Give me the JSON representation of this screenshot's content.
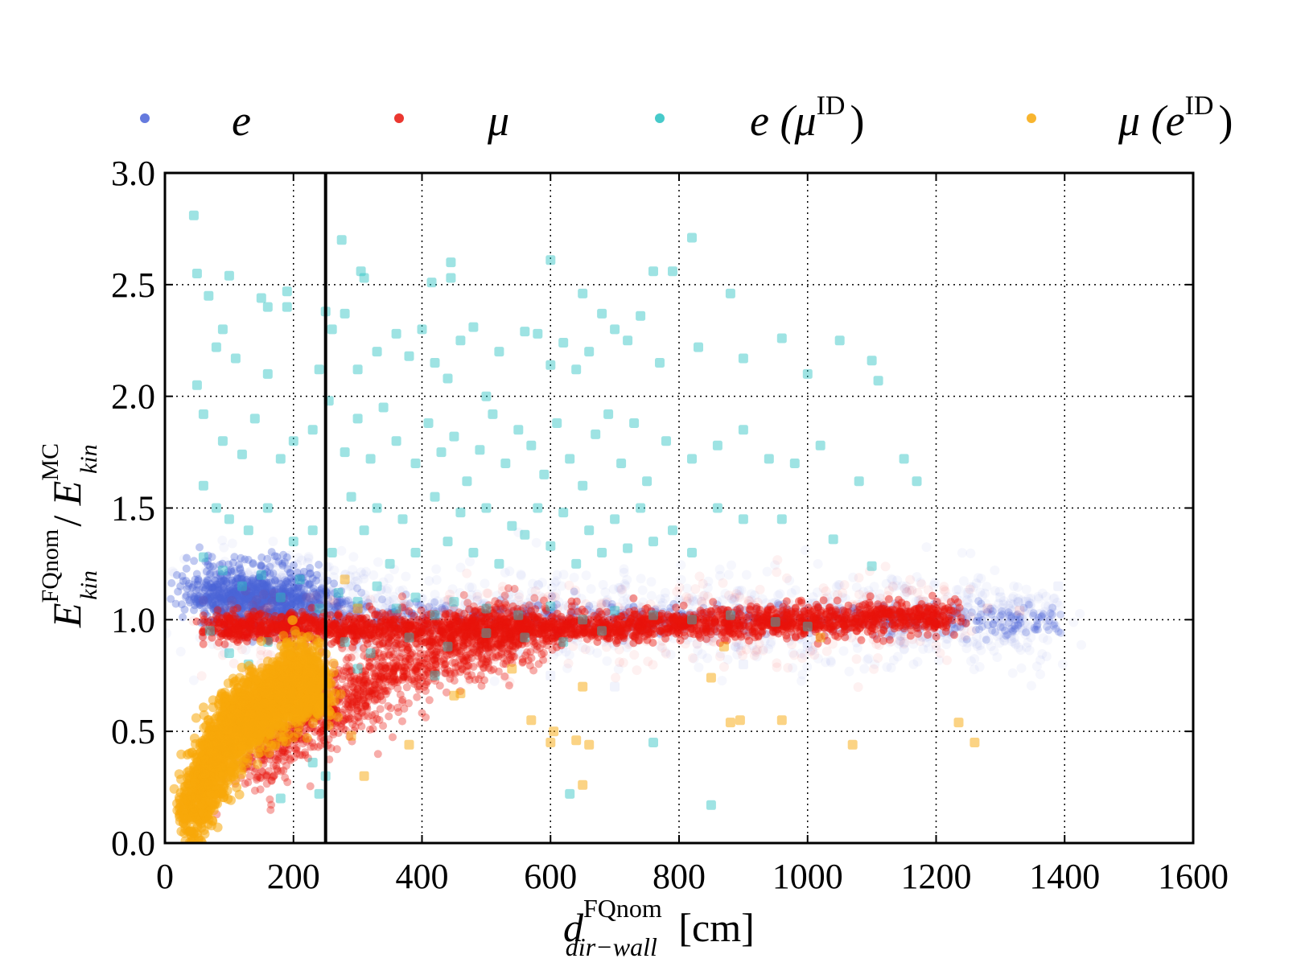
{
  "chart_data": {
    "type": "scatter",
    "xlabel": {
      "base": "d",
      "superscript": "FQnom",
      "subscript": "dir−wall",
      "unit": " [cm]"
    },
    "ylabel": {
      "num_base": "E",
      "num_sup": "FQnom",
      "num_sub": "kin",
      "sep": " / ",
      "den_base": "E",
      "den_sup": "MC",
      "den_sub": "kin"
    },
    "xlim": [
      0,
      1600
    ],
    "ylim": [
      0.0,
      3.0
    ],
    "xticks": [
      "0",
      "200",
      "400",
      "600",
      "800",
      "1000",
      "1200",
      "1400",
      "1600"
    ],
    "yticks": [
      "0.0",
      "0.5",
      "1.0",
      "1.5",
      "2.0",
      "2.5",
      "3.0"
    ],
    "xtick_values": [
      0,
      200,
      400,
      600,
      800,
      1000,
      1200,
      1400,
      1600
    ],
    "ytick_values": [
      0.0,
      0.5,
      1.0,
      1.5,
      2.0,
      2.5,
      3.0
    ],
    "grid": true,
    "legend_position": "top",
    "vertical_line_x": 250,
    "series": [
      {
        "name": "e",
        "sup": "",
        "color": "#4a63d8",
        "core": [
          [
            60,
            1.1
          ],
          [
            100,
            1.12
          ],
          [
            140,
            1.1
          ],
          [
            180,
            1.09
          ],
          [
            220,
            1.07
          ],
          [
            300,
            1.03
          ],
          [
            400,
            1.02
          ],
          [
            500,
            1.01
          ],
          [
            600,
            1.01
          ],
          [
            700,
            1.01
          ],
          [
            800,
            1.01
          ],
          [
            900,
            1.01
          ],
          [
            1000,
            1.0
          ],
          [
            1100,
            1.0
          ],
          [
            1200,
            1.0
          ],
          [
            1300,
            1.0
          ],
          [
            1380,
            1.0
          ]
        ],
        "points": [
          [
            1200,
            1.06
          ],
          [
            1250,
            1.12
          ],
          [
            1300,
            1.1
          ],
          [
            1340,
            1.08
          ],
          [
            1390,
            1.15
          ],
          [
            1150,
            0.9
          ],
          [
            1000,
            0.88
          ],
          [
            900,
            0.8
          ],
          [
            700,
            0.7
          ],
          [
            600,
            0.75
          ]
        ]
      },
      {
        "name": "μ",
        "sup": "",
        "color": "#e8140c",
        "core": [
          [
            80,
            0.96
          ],
          [
            150,
            0.97
          ],
          [
            250,
            0.96
          ],
          [
            350,
            0.96
          ],
          [
            450,
            0.96
          ],
          [
            550,
            0.96
          ],
          [
            650,
            0.97
          ],
          [
            750,
            0.97
          ],
          [
            850,
            0.98
          ],
          [
            950,
            0.99
          ],
          [
            1050,
            1.0
          ],
          [
            1150,
            1.01
          ],
          [
            1220,
            1.02
          ]
        ],
        "lower_arm": [
          [
            130,
            0.35
          ],
          [
            180,
            0.45
          ],
          [
            230,
            0.55
          ],
          [
            280,
            0.65
          ],
          [
            330,
            0.72
          ],
          [
            380,
            0.8
          ],
          [
            430,
            0.85
          ],
          [
            480,
            0.9
          ],
          [
            530,
            0.93
          ],
          [
            580,
            0.95
          ]
        ],
        "points": [
          [
            1280,
            1.05
          ],
          [
            1330,
            1.04
          ],
          [
            1180,
            1.08
          ]
        ]
      },
      {
        "name": "e (",
        "sup": "ID",
        "sup_base": "μ",
        "suffix": ")",
        "color": "#27c1c1",
        "points": [
          [
            45,
            2.81
          ],
          [
            50,
            2.55
          ],
          [
            68,
            2.45
          ],
          [
            100,
            2.54
          ],
          [
            150,
            2.44
          ],
          [
            160,
            2.4
          ],
          [
            190,
            2.47
          ],
          [
            190,
            2.4
          ],
          [
            275,
            2.7
          ],
          [
            305,
            2.56
          ],
          [
            310,
            2.53
          ],
          [
            280,
            2.37
          ],
          [
            415,
            2.51
          ],
          [
            445,
            2.6
          ],
          [
            445,
            2.53
          ],
          [
            600,
            2.61
          ],
          [
            650,
            2.46
          ],
          [
            760,
            2.56
          ],
          [
            790,
            2.56
          ],
          [
            820,
            2.71
          ],
          [
            880,
            2.46
          ],
          [
            90,
            2.3
          ],
          [
            80,
            2.22
          ],
          [
            110,
            2.17
          ],
          [
            160,
            2.1
          ],
          [
            240,
            2.12
          ],
          [
            255,
            1.98
          ],
          [
            260,
            2.3
          ],
          [
            300,
            2.12
          ],
          [
            330,
            2.2
          ],
          [
            360,
            2.28
          ],
          [
            380,
            2.18
          ],
          [
            400,
            2.3
          ],
          [
            420,
            2.15
          ],
          [
            440,
            2.08
          ],
          [
            460,
            2.25
          ],
          [
            480,
            2.31
          ],
          [
            500,
            2.0
          ],
          [
            520,
            2.2
          ],
          [
            560,
            2.29
          ],
          [
            580,
            2.28
          ],
          [
            600,
            2.14
          ],
          [
            620,
            2.24
          ],
          [
            640,
            2.12
          ],
          [
            660,
            2.2
          ],
          [
            680,
            2.37
          ],
          [
            700,
            2.3
          ],
          [
            720,
            2.25
          ],
          [
            740,
            2.36
          ],
          [
            770,
            2.15
          ],
          [
            830,
            2.22
          ],
          [
            900,
            2.17
          ],
          [
            960,
            2.26
          ],
          [
            1000,
            2.1
          ],
          [
            1050,
            2.25
          ],
          [
            1100,
            2.16
          ],
          [
            1110,
            2.07
          ],
          [
            250,
            2.38
          ],
          [
            50,
            2.05
          ],
          [
            60,
            1.92
          ],
          [
            90,
            1.8
          ],
          [
            120,
            1.74
          ],
          [
            140,
            1.9
          ],
          [
            180,
            1.72
          ],
          [
            200,
            1.8
          ],
          [
            230,
            1.85
          ],
          [
            280,
            1.75
          ],
          [
            300,
            1.9
          ],
          [
            320,
            1.72
          ],
          [
            340,
            1.95
          ],
          [
            360,
            1.8
          ],
          [
            390,
            1.7
          ],
          [
            410,
            1.88
          ],
          [
            430,
            1.75
          ],
          [
            450,
            1.82
          ],
          [
            470,
            1.62
          ],
          [
            490,
            1.76
          ],
          [
            510,
            1.92
          ],
          [
            530,
            1.7
          ],
          [
            550,
            1.85
          ],
          [
            570,
            1.78
          ],
          [
            590,
            1.65
          ],
          [
            610,
            1.88
          ],
          [
            630,
            1.72
          ],
          [
            650,
            1.6
          ],
          [
            670,
            1.83
          ],
          [
            690,
            1.92
          ],
          [
            710,
            1.7
          ],
          [
            730,
            1.88
          ],
          [
            750,
            1.62
          ],
          [
            780,
            1.8
          ],
          [
            820,
            1.72
          ],
          [
            860,
            1.78
          ],
          [
            900,
            1.85
          ],
          [
            940,
            1.72
          ],
          [
            980,
            1.7
          ],
          [
            1020,
            1.78
          ],
          [
            1080,
            1.62
          ],
          [
            1150,
            1.72
          ],
          [
            1170,
            1.62
          ],
          [
            60,
            1.6
          ],
          [
            80,
            1.5
          ],
          [
            100,
            1.45
          ],
          [
            130,
            1.4
          ],
          [
            160,
            1.5
          ],
          [
            200,
            1.35
          ],
          [
            230,
            1.4
          ],
          [
            260,
            1.3
          ],
          [
            290,
            1.55
          ],
          [
            310,
            1.4
          ],
          [
            330,
            1.5
          ],
          [
            350,
            1.25
          ],
          [
            370,
            1.45
          ],
          [
            390,
            1.3
          ],
          [
            420,
            1.55
          ],
          [
            440,
            1.35
          ],
          [
            460,
            1.48
          ],
          [
            480,
            1.3
          ],
          [
            500,
            1.5
          ],
          [
            520,
            1.25
          ],
          [
            540,
            1.42
          ],
          [
            560,
            1.38
          ],
          [
            580,
            1.5
          ],
          [
            600,
            1.33
          ],
          [
            620,
            1.48
          ],
          [
            640,
            1.25
          ],
          [
            660,
            1.4
          ],
          [
            680,
            1.3
          ],
          [
            700,
            1.45
          ],
          [
            720,
            1.32
          ],
          [
            740,
            1.5
          ],
          [
            760,
            1.35
          ],
          [
            790,
            1.4
          ],
          [
            820,
            1.3
          ],
          [
            860,
            1.5
          ],
          [
            900,
            1.45
          ],
          [
            960,
            1.45
          ],
          [
            1040,
            1.36
          ],
          [
            1100,
            1.24
          ],
          [
            60,
            1.28
          ],
          [
            90,
            1.22
          ],
          [
            120,
            1.15
          ],
          [
            150,
            1.2
          ],
          [
            180,
            1.1
          ],
          [
            210,
            1.18
          ],
          [
            240,
            1.05
          ],
          [
            270,
            1.12
          ],
          [
            300,
            1.08
          ],
          [
            330,
            1.15
          ],
          [
            360,
            1.05
          ],
          [
            390,
            1.1
          ],
          [
            420,
            1.02
          ],
          [
            450,
            1.08
          ],
          [
            500,
            1.05
          ],
          [
            550,
            1.02
          ],
          [
            600,
            1.06
          ],
          [
            650,
            1.0
          ],
          [
            700,
            1.04
          ],
          [
            760,
            1.02
          ],
          [
            820,
            1.0
          ],
          [
            880,
            1.02
          ],
          [
            950,
            0.99
          ],
          [
            1000,
            0.97
          ],
          [
            70,
            0.95
          ],
          [
            100,
            0.85
          ],
          [
            130,
            0.8
          ],
          [
            160,
            0.9
          ],
          [
            200,
            0.7
          ],
          [
            230,
            0.8
          ],
          [
            250,
            0.3
          ],
          [
            240,
            0.22
          ],
          [
            280,
            0.9
          ],
          [
            320,
            0.85
          ],
          [
            380,
            0.92
          ],
          [
            440,
            0.88
          ],
          [
            500,
            0.94
          ],
          [
            560,
            0.92
          ],
          [
            620,
            0.9
          ],
          [
            680,
            0.95
          ],
          [
            760,
            0.45
          ],
          [
            630,
            0.22
          ],
          [
            850,
            0.17
          ],
          [
            150,
            0.6
          ],
          [
            180,
            0.2
          ],
          [
            230,
            0.36
          ],
          [
            300,
            0.78
          ],
          [
            420,
            0.75
          ]
        ]
      },
      {
        "name": "μ (",
        "sup": "ID",
        "sup_base": "e",
        "suffix": ")",
        "color": "#f7a80a",
        "core": [
          [
            40,
            0.1
          ],
          [
            60,
            0.25
          ],
          [
            80,
            0.4
          ],
          [
            100,
            0.5
          ],
          [
            120,
            0.55
          ],
          [
            140,
            0.62
          ],
          [
            160,
            0.6
          ],
          [
            180,
            0.68
          ],
          [
            200,
            0.72
          ],
          [
            220,
            0.75
          ],
          [
            240,
            0.65
          ]
        ],
        "points": [
          [
            280,
            1.18
          ],
          [
            300,
            1.05
          ],
          [
            290,
            0.48
          ],
          [
            310,
            0.3
          ],
          [
            380,
            0.44
          ],
          [
            450,
            0.66
          ],
          [
            460,
            0.67
          ],
          [
            540,
            0.78
          ],
          [
            570,
            0.55
          ],
          [
            600,
            0.45
          ],
          [
            605,
            0.5
          ],
          [
            640,
            0.46
          ],
          [
            650,
            0.7
          ],
          [
            660,
            0.44
          ],
          [
            650,
            0.26
          ],
          [
            850,
            0.74
          ],
          [
            870,
            0.88
          ],
          [
            880,
            0.54
          ],
          [
            895,
            0.55
          ],
          [
            1020,
            0.92
          ],
          [
            1070,
            0.44
          ],
          [
            1235,
            0.54
          ],
          [
            1260,
            0.45
          ],
          [
            960,
            0.55
          ]
        ]
      }
    ]
  }
}
